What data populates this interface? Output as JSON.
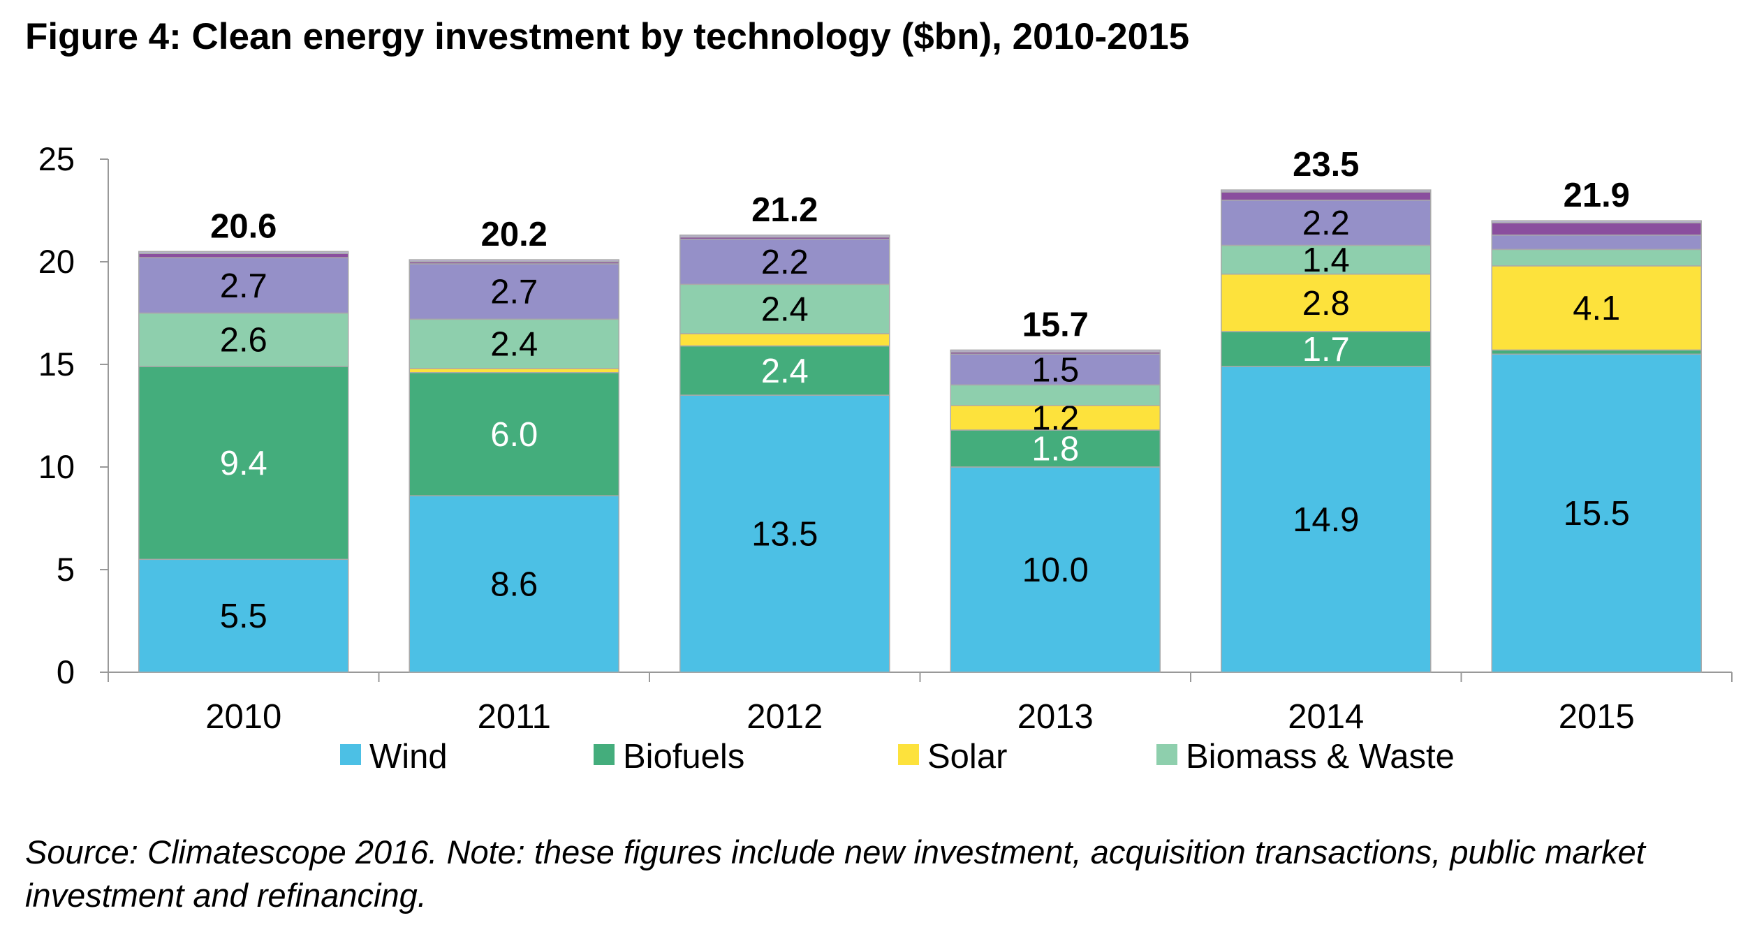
{
  "title": "Figure 4: Clean energy investment by technology ($bn), 2010-2015",
  "source": "Source: Climatescope 2016. Note: these figures include new investment, acquisition transactions, public market investment and refinancing.",
  "chart_data": {
    "type": "bar",
    "stacked": true,
    "categories": [
      "2010",
      "2011",
      "2012",
      "2013",
      "2014",
      "2015"
    ],
    "ylim": [
      0,
      25
    ],
    "yticks": [
      "0",
      "5",
      "10",
      "15",
      "20",
      "25"
    ],
    "grid": false,
    "legend_position": "bottom",
    "totals": [
      "20.6",
      "20.2",
      "21.2",
      "15.7",
      "23.5",
      "21.9"
    ],
    "series": [
      {
        "name": "Wind",
        "color": "#4cc0e5",
        "label_color": "#000000",
        "values": [
          5.5,
          8.6,
          13.5,
          10.0,
          14.9,
          15.5
        ],
        "labels": [
          "5.5",
          "8.6",
          "13.5",
          "10.0",
          "14.9",
          "15.5"
        ]
      },
      {
        "name": "Biofuels",
        "color": "#44ad7c",
        "label_color": "#ffffff",
        "values": [
          9.4,
          6.0,
          2.4,
          1.8,
          1.7,
          0.2
        ],
        "labels": [
          "9.4",
          "6.0",
          "2.4",
          "1.8",
          "1.7",
          ""
        ]
      },
      {
        "name": "Solar",
        "color": "#fde23c",
        "label_color": "#000000",
        "values": [
          0.0,
          0.2,
          0.6,
          1.2,
          2.8,
          4.1
        ],
        "labels": [
          "",
          "",
          "",
          "1.2",
          "2.8",
          "4.1"
        ]
      },
      {
        "name": "Biomass & Waste",
        "color": "#8ecfad",
        "label_color": "#000000",
        "values": [
          2.6,
          2.4,
          2.4,
          1.0,
          1.4,
          0.8
        ],
        "labels": [
          "2.6",
          "2.4",
          "2.4",
          "",
          "1.4",
          ""
        ]
      },
      {
        "name": "",
        "color": "#9590c8",
        "label_color": "#000000",
        "values": [
          2.7,
          2.7,
          2.2,
          1.5,
          2.2,
          0.7
        ],
        "labels": [
          "2.7",
          "2.7",
          "2.2",
          "1.5",
          "2.2",
          ""
        ]
      },
      {
        "name": "",
        "color": "#8a4e9e",
        "label_color": "#000000",
        "values": [
          0.2,
          0.1,
          0.1,
          0.1,
          0.4,
          0.6
        ],
        "labels": [
          "",
          "",
          "",
          "",
          "",
          ""
        ]
      },
      {
        "name": "",
        "color": "#b9b2d2",
        "label_color": "#000000",
        "values": [
          0.1,
          0.1,
          0.1,
          0.1,
          0.1,
          0.1
        ],
        "labels": [
          "",
          "",
          "",
          "",
          "",
          ""
        ]
      }
    ]
  }
}
